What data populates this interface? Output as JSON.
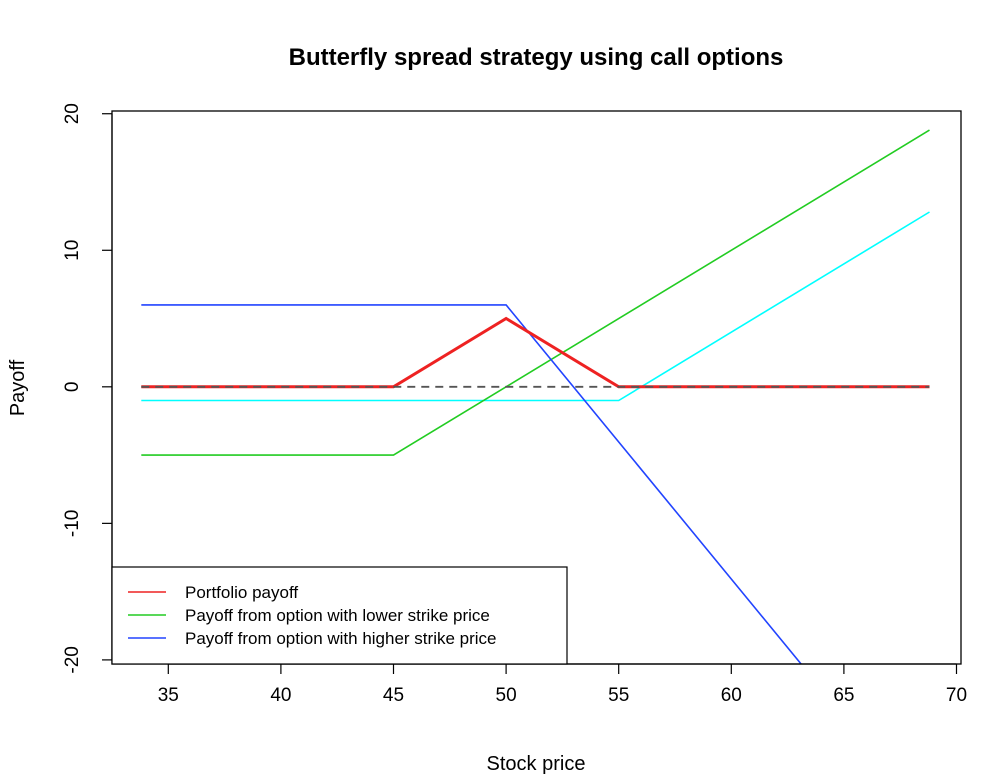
{
  "chart_data": {
    "type": "line",
    "title": "Butterfly spread strategy using call options",
    "xlabel": "Stock price",
    "ylabel": "Payoff",
    "xlim": [
      32.5,
      70.2
    ],
    "ylim": [
      -20.3,
      20.2
    ],
    "xticks": [
      35,
      40,
      45,
      50,
      55,
      60,
      65,
      70
    ],
    "yticks": [
      -20,
      -10,
      0,
      10,
      20
    ],
    "reference_line": {
      "y": 0,
      "style": "dashed",
      "color": "#555555"
    },
    "legend": {
      "position": "bottom-left"
    },
    "series": [
      {
        "name": "",
        "color": "#00ffff",
        "width": 1.6,
        "in_legend": false,
        "x": [
          33.8,
          55,
          68.8
        ],
        "y": [
          -1,
          -1,
          12.8
        ]
      },
      {
        "name": "Payoff from option with lower strike price",
        "color": "#22cc22",
        "width": 1.6,
        "in_legend": true,
        "x": [
          33.8,
          45,
          68.8
        ],
        "y": [
          -5,
          -5,
          18.8
        ]
      },
      {
        "name": "Payoff from option with higher strike price",
        "color": "#2244ff",
        "width": 1.6,
        "in_legend": true,
        "x": [
          33.8,
          50,
          63.1
        ],
        "y": [
          6,
          6,
          -20.3
        ]
      },
      {
        "name": "Portfolio payoff",
        "color": "#ee2222",
        "width": 3,
        "in_legend": true,
        "x": [
          33.8,
          45,
          50,
          55,
          68.8
        ],
        "y": [
          0,
          0,
          5,
          0,
          0
        ]
      }
    ],
    "legend_order": [
      "Portfolio payoff",
      "Payoff from option with lower strike price",
      "Payoff from option with higher strike price"
    ]
  }
}
